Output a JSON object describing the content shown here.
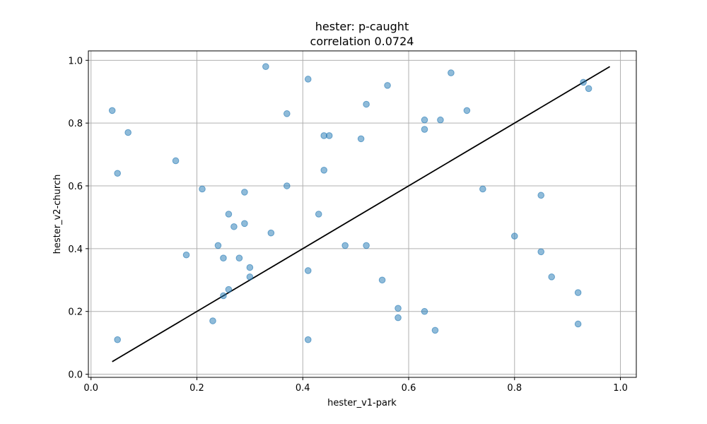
{
  "chart_data": {
    "type": "scatter",
    "title": "hester: p-caught",
    "subtitle": "correlation 0.0724",
    "xlabel": "hester_v1-park",
    "ylabel": "hester_v2-church",
    "xlim": [
      -0.005,
      1.03
    ],
    "ylim": [
      -0.01,
      1.03
    ],
    "xticks": [
      "0.0",
      "0.2",
      "0.4",
      "0.6",
      "0.8",
      "1.0"
    ],
    "yticks": [
      "0.0",
      "0.2",
      "0.4",
      "0.6",
      "0.8",
      "1.0"
    ],
    "grid": true,
    "point_color": "#1f77b4",
    "line_color": "#000000",
    "fit_line": {
      "x": [
        0.04,
        0.98
      ],
      "y": [
        0.04,
        0.98
      ]
    },
    "points": [
      [
        0.04,
        0.84
      ],
      [
        0.07,
        0.77
      ],
      [
        0.05,
        0.64
      ],
      [
        0.05,
        0.11
      ],
      [
        0.16,
        0.68
      ],
      [
        0.18,
        0.38
      ],
      [
        0.21,
        0.59
      ],
      [
        0.23,
        0.17
      ],
      [
        0.24,
        0.41
      ],
      [
        0.25,
        0.37
      ],
      [
        0.25,
        0.25
      ],
      [
        0.26,
        0.51
      ],
      [
        0.26,
        0.27
      ],
      [
        0.27,
        0.47
      ],
      [
        0.28,
        0.37
      ],
      [
        0.29,
        0.58
      ],
      [
        0.29,
        0.48
      ],
      [
        0.3,
        0.34
      ],
      [
        0.3,
        0.31
      ],
      [
        0.33,
        0.98
      ],
      [
        0.34,
        0.45
      ],
      [
        0.37,
        0.83
      ],
      [
        0.37,
        0.6
      ],
      [
        0.41,
        0.94
      ],
      [
        0.41,
        0.33
      ],
      [
        0.41,
        0.11
      ],
      [
        0.43,
        0.51
      ],
      [
        0.44,
        0.76
      ],
      [
        0.45,
        0.76
      ],
      [
        0.44,
        0.65
      ],
      [
        0.48,
        0.41
      ],
      [
        0.51,
        0.75
      ],
      [
        0.52,
        0.86
      ],
      [
        0.52,
        0.41
      ],
      [
        0.55,
        0.3
      ],
      [
        0.56,
        0.92
      ],
      [
        0.58,
        0.21
      ],
      [
        0.58,
        0.18
      ],
      [
        0.63,
        0.81
      ],
      [
        0.63,
        0.78
      ],
      [
        0.63,
        0.2
      ],
      [
        0.65,
        0.14
      ],
      [
        0.66,
        0.81
      ],
      [
        0.68,
        0.96
      ],
      [
        0.71,
        0.84
      ],
      [
        0.74,
        0.59
      ],
      [
        0.8,
        0.44
      ],
      [
        0.85,
        0.57
      ],
      [
        0.85,
        0.39
      ],
      [
        0.87,
        0.31
      ],
      [
        0.92,
        0.26
      ],
      [
        0.92,
        0.16
      ],
      [
        0.93,
        0.93
      ],
      [
        0.94,
        0.91
      ]
    ]
  }
}
